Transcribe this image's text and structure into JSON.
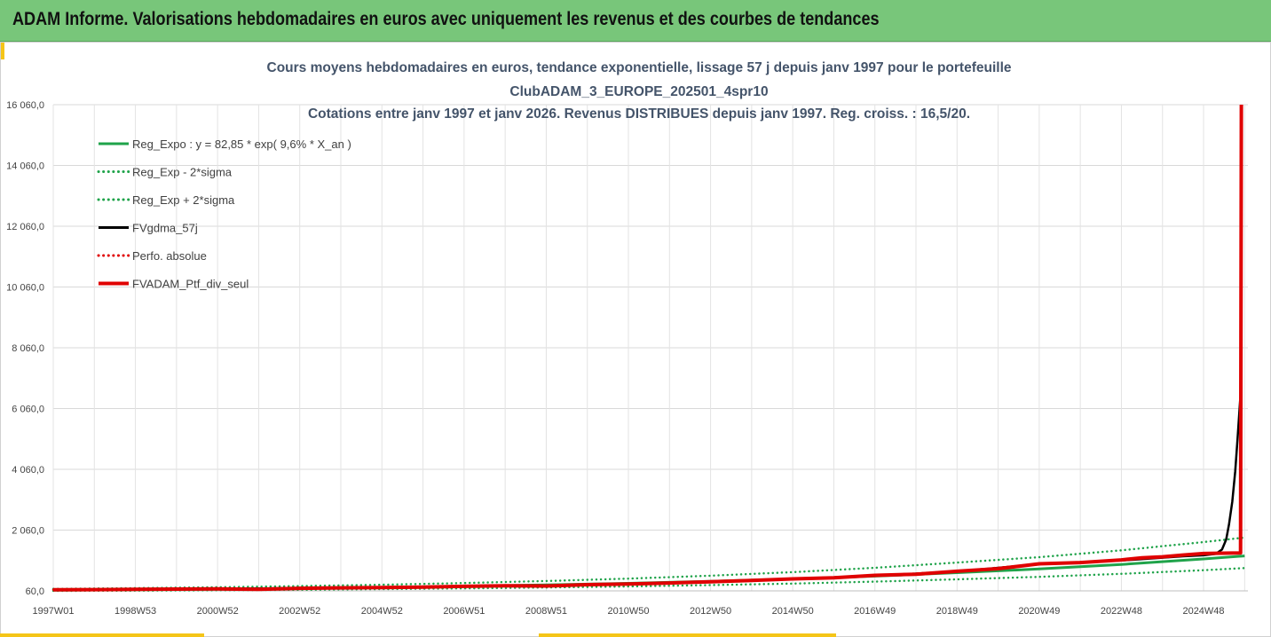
{
  "header": {
    "title": "ADAM Informe. Valorisations hebdomadaires en euros avec uniquement les revenus et des courbes de tendances"
  },
  "colors": {
    "header_bg": "#78c67a",
    "accent": "#f5c518",
    "reg_expo": "#1fa34a",
    "reg_band": "#1fa34a",
    "fvgdma": "#000000",
    "perfo": "#e00000",
    "fvadam": "#e00000"
  },
  "chart_data": {
    "type": "line",
    "title_lines": [
      "Cours moyens hebdomadaires  en euros, tendance exponentielle, lissage 57 j depuis janv 1997 pour le portefeuille",
      "ClubADAM_3_EUROPE_202501_4spr10",
      "Cotations entre janv 1997 et janv 2026. Revenus DISTRIBUES depuis janv 1997. Reg. croiss. : 16,5/20."
    ],
    "ylim": [
      60,
      16060
    ],
    "y_ticks": [
      60,
      2060,
      4060,
      6060,
      8060,
      10060,
      12060,
      14060,
      16060
    ],
    "y_tick_labels": [
      "60,0",
      "2 060,0",
      "4 060,0",
      "6 060,0",
      "8 060,0",
      "10 060,0",
      "12 060,0",
      "14 060,0",
      "16 060,0"
    ],
    "x_range_years": [
      1997.0,
      2026.08
    ],
    "x_ticks": [
      {
        "label": "1997W01",
        "year": 1997.0
      },
      {
        "label": "1998W53",
        "year": 1999.0
      },
      {
        "label": "2000W52",
        "year": 2001.0
      },
      {
        "label": "2002W52",
        "year": 2003.0
      },
      {
        "label": "2004W52",
        "year": 2005.0
      },
      {
        "label": "2006W51",
        "year": 2007.0
      },
      {
        "label": "2008W51",
        "year": 2009.0
      },
      {
        "label": "2010W50",
        "year": 2011.0
      },
      {
        "label": "2012W50",
        "year": 2013.0
      },
      {
        "label": "2014W50",
        "year": 2015.0
      },
      {
        "label": "2016W49",
        "year": 2017.0
      },
      {
        "label": "2018W49",
        "year": 2019.0
      },
      {
        "label": "2020W49",
        "year": 2021.0
      },
      {
        "label": "2022W48",
        "year": 2023.0
      },
      {
        "label": "2024W48",
        "year": 2025.0
      }
    ],
    "grid": true,
    "legend_position": "top-left",
    "series": [
      {
        "name": "Reg_Expo : y = 82,85 * exp( 9,6% *  X_an )",
        "style": "solid",
        "color": "#1fa34a",
        "points": [
          [
            1997.0,
            83
          ],
          [
            1999.0,
            99
          ],
          [
            2001.0,
            119
          ],
          [
            2003.0,
            144
          ],
          [
            2005.0,
            175
          ],
          [
            2007.0,
            212
          ],
          [
            2009.0,
            256
          ],
          [
            2011.0,
            309
          ],
          [
            2013.0,
            374
          ],
          [
            2015.0,
            450
          ],
          [
            2017.0,
            545
          ],
          [
            2019.0,
            660
          ],
          [
            2021.0,
            780
          ],
          [
            2023.0,
            930
          ],
          [
            2025.0,
            1110
          ],
          [
            2026.0,
            1210
          ]
        ]
      },
      {
        "name": "Reg_Exp - 2*sigma",
        "style": "dotted",
        "color": "#1fa34a",
        "points": [
          [
            1997.0,
            60
          ],
          [
            1999.0,
            67
          ],
          [
            2001.0,
            80
          ],
          [
            2003.0,
            96
          ],
          [
            2005.0,
            117
          ],
          [
            2007.0,
            141
          ],
          [
            2009.0,
            171
          ],
          [
            2011.0,
            206
          ],
          [
            2013.0,
            250
          ],
          [
            2015.0,
            300
          ],
          [
            2017.0,
            364
          ],
          [
            2019.0,
            440
          ],
          [
            2021.0,
            520
          ],
          [
            2023.0,
            620
          ],
          [
            2025.0,
            740
          ],
          [
            2026.0,
            810
          ]
        ]
      },
      {
        "name": "Reg_Exp + 2*sigma",
        "style": "dotted",
        "color": "#1fa34a",
        "points": [
          [
            1997.0,
            125
          ],
          [
            1999.0,
            150
          ],
          [
            2001.0,
            180
          ],
          [
            2003.0,
            217
          ],
          [
            2005.0,
            262
          ],
          [
            2007.0,
            317
          ],
          [
            2009.0,
            384
          ],
          [
            2011.0,
            464
          ],
          [
            2013.0,
            560
          ],
          [
            2015.0,
            676
          ],
          [
            2017.0,
            818
          ],
          [
            2019.0,
            990
          ],
          [
            2021.0,
            1170
          ],
          [
            2023.0,
            1395
          ],
          [
            2025.0,
            1665
          ],
          [
            2026.0,
            1815
          ]
        ]
      },
      {
        "name": "FVgdma_57j",
        "style": "solid",
        "color": "#000000",
        "points": [
          [
            1997.0,
            95
          ],
          [
            1999.0,
            108
          ],
          [
            2001.0,
            128
          ],
          [
            2003.0,
            150
          ],
          [
            2005.0,
            170
          ],
          [
            2007.0,
            205
          ],
          [
            2009.0,
            230
          ],
          [
            2011.0,
            290
          ],
          [
            2013.0,
            360
          ],
          [
            2015.0,
            450
          ],
          [
            2017.0,
            560
          ],
          [
            2019.0,
            700
          ],
          [
            2021.0,
            940
          ],
          [
            2023.0,
            1060
          ],
          [
            2024.5,
            1200
          ],
          [
            2025.0,
            1230
          ],
          [
            2025.3,
            1280
          ],
          [
            2025.45,
            1420
          ],
          [
            2025.55,
            1750
          ],
          [
            2025.62,
            2250
          ],
          [
            2025.7,
            3000
          ],
          [
            2025.77,
            4000
          ],
          [
            2025.83,
            5100
          ],
          [
            2025.88,
            6100
          ],
          [
            2025.92,
            6900
          ]
        ]
      },
      {
        "name": "Perfo. absolue",
        "style": "dotted",
        "color": "#e00000",
        "points": [
          [
            1997.0,
            100
          ],
          [
            1999.0,
            112
          ],
          [
            2001.0,
            126
          ],
          [
            2003.0,
            148
          ],
          [
            2005.0,
            168
          ],
          [
            2007.0,
            208
          ],
          [
            2009.0,
            226
          ],
          [
            2011.0,
            288
          ],
          [
            2013.0,
            362
          ],
          [
            2015.0,
            456
          ],
          [
            2017.0,
            566
          ],
          [
            2019.0,
            705
          ],
          [
            2021.0,
            945
          ],
          [
            2023.0,
            1070
          ],
          [
            2025.0,
            1290
          ],
          [
            2025.9,
            1310
          ],
          [
            2025.92,
            16060
          ]
        ]
      },
      {
        "name": "FVADAM_Ptf_div_seul",
        "style": "solid",
        "color": "#e00000",
        "points": [
          [
            1997.0,
            95
          ],
          [
            1998.0,
            102
          ],
          [
            1999.0,
            110
          ],
          [
            2000.0,
            118
          ],
          [
            2001.0,
            125
          ],
          [
            2002.0,
            112
          ],
          [
            2003.0,
            145
          ],
          [
            2004.0,
            158
          ],
          [
            2005.0,
            168
          ],
          [
            2006.0,
            185
          ],
          [
            2007.0,
            210
          ],
          [
            2008.0,
            225
          ],
          [
            2009.0,
            222
          ],
          [
            2010.0,
            265
          ],
          [
            2011.0,
            285
          ],
          [
            2012.0,
            320
          ],
          [
            2013.0,
            360
          ],
          [
            2014.0,
            405
          ],
          [
            2015.0,
            455
          ],
          [
            2016.0,
            490
          ],
          [
            2017.0,
            570
          ],
          [
            2018.0,
            610
          ],
          [
            2019.0,
            705
          ],
          [
            2020.0,
            790
          ],
          [
            2021.0,
            950
          ],
          [
            2022.0,
            990
          ],
          [
            2023.0,
            1080
          ],
          [
            2023.5,
            1150
          ],
          [
            2024.0,
            1180
          ],
          [
            2024.5,
            1240
          ],
          [
            2025.0,
            1290
          ],
          [
            2025.5,
            1300
          ],
          [
            2025.9,
            1310
          ],
          [
            2025.92,
            16060
          ]
        ]
      }
    ]
  }
}
